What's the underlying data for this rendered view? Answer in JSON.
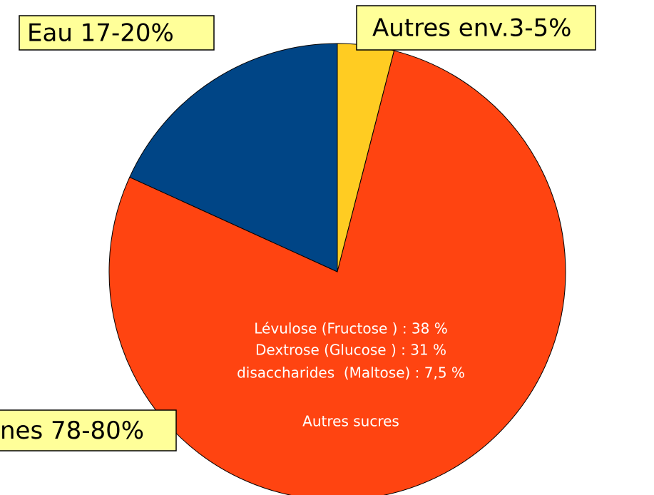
{
  "chart_data": {
    "type": "pie",
    "labels": [
      "Autres env.3-5%",
      "nes 78-80%",
      "Eau 17-20%"
    ],
    "values": [
      4,
      77.8,
      18.2
    ],
    "colors": [
      "#ffcc22",
      "#ff4411",
      "#004586"
    ],
    "annotations": [
      "Lévulose (Fructose ) : 38 %",
      "Dextrose (Glucose ) : 31 %",
      "disaccharides  (Maltose) : 7,5 %",
      "Autres sucres"
    ]
  }
}
